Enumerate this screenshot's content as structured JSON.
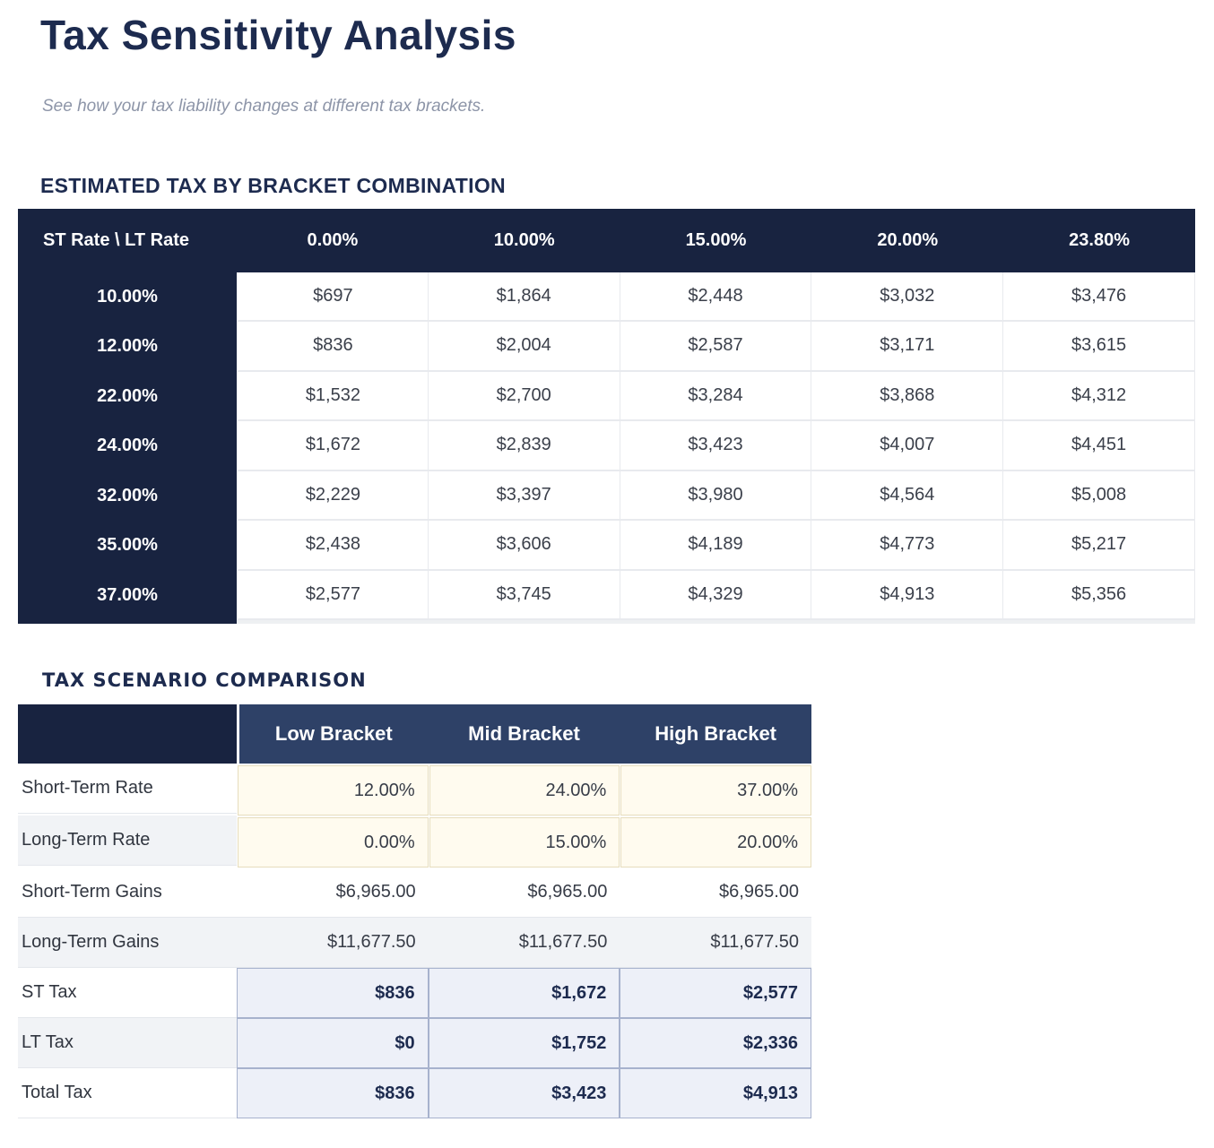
{
  "page": {
    "title": "Tax Sensitivity Analysis",
    "subtitle": "See how your tax liability changes at different tax brackets."
  },
  "bracket_matrix": {
    "section_title": "ESTIMATED TAX BY BRACKET COMBINATION",
    "corner_label": "ST Rate \\ LT Rate",
    "lt_rate_headers": [
      "0.00%",
      "10.00%",
      "15.00%",
      "20.00%",
      "23.80%"
    ],
    "rows": [
      {
        "st_rate": "10.00%",
        "values": [
          "$697",
          "$1,864",
          "$2,448",
          "$3,032",
          "$3,476"
        ]
      },
      {
        "st_rate": "12.00%",
        "values": [
          "$836",
          "$2,004",
          "$2,587",
          "$3,171",
          "$3,615"
        ]
      },
      {
        "st_rate": "22.00%",
        "values": [
          "$1,532",
          "$2,700",
          "$3,284",
          "$3,868",
          "$4,312"
        ]
      },
      {
        "st_rate": "24.00%",
        "values": [
          "$1,672",
          "$2,839",
          "$3,423",
          "$4,007",
          "$4,451"
        ]
      },
      {
        "st_rate": "32.00%",
        "values": [
          "$2,229",
          "$3,397",
          "$3,980",
          "$4,564",
          "$5,008"
        ]
      },
      {
        "st_rate": "35.00%",
        "values": [
          "$2,438",
          "$3,606",
          "$4,189",
          "$4,773",
          "$5,217"
        ]
      },
      {
        "st_rate": "37.00%",
        "values": [
          "$2,577",
          "$3,745",
          "$4,329",
          "$4,913",
          "$5,356"
        ]
      }
    ]
  },
  "scenario_comparison": {
    "section_title": "TAX SCENARIO COMPARISON",
    "column_headers": [
      "Low Bracket",
      "Mid Bracket",
      "High Bracket"
    ],
    "rows": [
      {
        "label": "Short-Term Rate",
        "values": [
          "12.00%",
          "24.00%",
          "37.00%"
        ]
      },
      {
        "label": "Long-Term Rate",
        "values": [
          "0.00%",
          "15.00%",
          "20.00%"
        ]
      },
      {
        "label": "Short-Term Gains",
        "values": [
          "$6,965.00",
          "$6,965.00",
          "$6,965.00"
        ]
      },
      {
        "label": "Long-Term Gains",
        "values": [
          "$11,677.50",
          "$11,677.50",
          "$11,677.50"
        ]
      },
      {
        "label": "ST Tax",
        "values": [
          "$836",
          "$1,672",
          "$2,577"
        ]
      },
      {
        "label": "LT Tax",
        "values": [
          "$0",
          "$1,752",
          "$2,336"
        ]
      },
      {
        "label": "Total Tax",
        "values": [
          "$836",
          "$3,423",
          "$4,913"
        ]
      }
    ]
  },
  "colors": {
    "header_navy": "#182340",
    "panel_navy": "#2e4167",
    "accent_navy": "#1d2b4f",
    "input_bg": "#fffbef",
    "input_border": "#e6ddbd",
    "result_bg": "#edf0f8",
    "result_border": "#a7b2cd"
  }
}
